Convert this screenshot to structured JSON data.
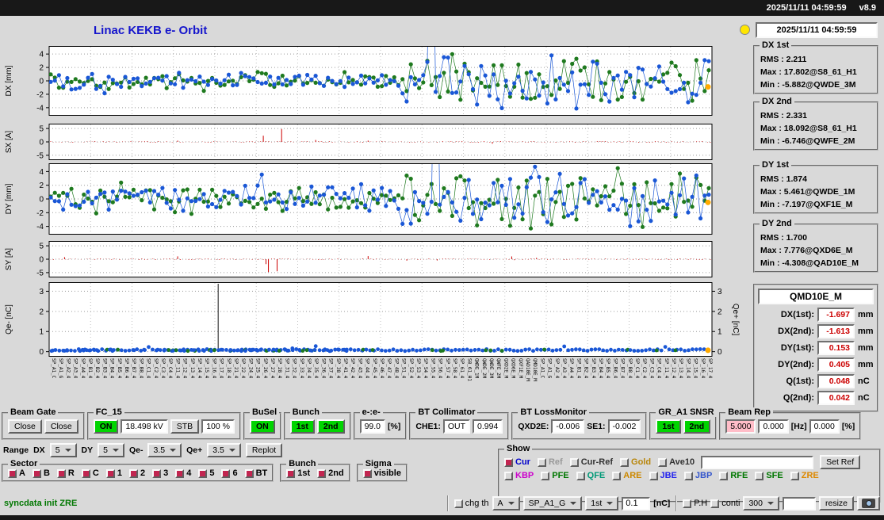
{
  "topbar": {
    "datetime": "2025/11/11 04:59:59",
    "version": "v8.9"
  },
  "header": {
    "title": "Linac KEKB e- Orbit",
    "timestamp": "2025/11/11 04:59:59"
  },
  "colors": {
    "green_on": "#00d400",
    "pink": "#ffbdc8",
    "value_red": "#cc0000",
    "title_blue": "#1515cc",
    "check": "#c22550",
    "lamp_yellow": "#ffe600",
    "series_blue": "#1a57d6",
    "series_green": "#1f7a1f",
    "series_red": "#cc0000",
    "marker_orange": "#ffaa00"
  },
  "stats": [
    {
      "label": "DX 1st",
      "lines": [
        "RMS : 2.211",
        "Max : 17.802@S8_61_H1",
        "Min : -5.882@QWDE_3M"
      ]
    },
    {
      "label": "DX 2nd",
      "lines": [
        "RMS : 2.331",
        "Max : 18.092@S8_61_H1",
        "Min : -6.746@QWFE_2M"
      ]
    },
    {
      "label": "DY 1st",
      "lines": [
        "RMS : 1.874",
        "Max : 5.461@QWDE_1M",
        "Min : -7.197@QXF1E_M"
      ]
    },
    {
      "label": "DY 2nd",
      "lines": [
        "RMS : 1.700",
        "Max : 7.776@QXD6E_M",
        "Min : -4.308@QAD10E_M"
      ]
    }
  ],
  "monitor": {
    "title": "QMD10E_M",
    "rows": [
      {
        "label": "DX(1st):",
        "value": "-1.697",
        "unit": "mm"
      },
      {
        "label": "DX(2nd):",
        "value": "-1.613",
        "unit": "mm"
      },
      {
        "label": "DY(1st):",
        "value": "0.153",
        "unit": "mm"
      },
      {
        "label": "DY(2nd):",
        "value": "0.405",
        "unit": "mm"
      },
      {
        "label": "Q(1st):",
        "value": "0.048",
        "unit": "nC"
      },
      {
        "label": "Q(2nd):",
        "value": "0.042",
        "unit": "nC"
      }
    ]
  },
  "controls": {
    "beam_gate": {
      "title": "Beam Gate",
      "b1": "Close",
      "b2": "Close"
    },
    "fc15": {
      "title": "FC_15",
      "on": "ON",
      "kv": "18.498 kV",
      "stb": "STB",
      "pct": "100 %"
    },
    "busel": {
      "title": "BuSel",
      "on": "ON"
    },
    "bunch": {
      "title": "Bunch",
      "b1": "1st",
      "b2": "2nd"
    },
    "ee": {
      "title": "e-:e-",
      "value": "99.0",
      "unit": "[%]"
    },
    "bt_coll": {
      "title": "BT Collimator",
      "label": "CHE1:",
      "state": "OUT",
      "value": "0.994"
    },
    "bt_loss": {
      "title": "BT LossMonitor",
      "l1": "QXD2E:",
      "v1": "-0.006",
      "l2": "SE1:",
      "v2": "-0.002"
    },
    "gr_snsr": {
      "title": "GR_A1 SNSR",
      "b1": "1st",
      "b2": "2nd"
    },
    "beam_rep": {
      "title": "Beam Rep",
      "v1": "5.000",
      "v2": "0.000",
      "u1": "[Hz]",
      "v3": "0.000",
      "u2": "[%]"
    }
  },
  "range": {
    "label": "Range",
    "dx_label": "DX",
    "dx": "5",
    "dy_label": "DY",
    "dy": "5",
    "qm_label": "Qe-",
    "qm": "3.5",
    "qp_label": "Qe+",
    "qp": "3.5",
    "replot": "Replot"
  },
  "sector": {
    "title": "Sector",
    "items": [
      {
        "label": "A",
        "checked": true
      },
      {
        "label": "B",
        "checked": true
      },
      {
        "label": "R",
        "checked": true
      },
      {
        "label": "C",
        "checked": true
      },
      {
        "label": "1",
        "checked": true
      },
      {
        "label": "2",
        "checked": true
      },
      {
        "label": "3",
        "checked": true
      },
      {
        "label": "4",
        "checked": true
      },
      {
        "label": "5",
        "checked": true
      },
      {
        "label": "6",
        "checked": true
      },
      {
        "label": "BT",
        "checked": true
      }
    ]
  },
  "bunch_sel": {
    "title": "Bunch",
    "items": [
      {
        "label": "1st",
        "checked": true
      },
      {
        "label": "2nd",
        "checked": true
      }
    ]
  },
  "sigma": {
    "title": "Sigma",
    "items": [
      {
        "label": "visible",
        "checked": true
      }
    ]
  },
  "show": {
    "title": "Show",
    "row1": [
      {
        "label": "Cur",
        "checked": true,
        "color": "#0000cc"
      },
      {
        "label": "Ref",
        "checked": false,
        "color": "#999999"
      },
      {
        "label": "Cur-Ref",
        "checked": false,
        "color": "#333333"
      },
      {
        "label": "Gold",
        "checked": false,
        "color": "#b8860b"
      },
      {
        "label": "Ave10",
        "checked": false,
        "color": "#333333"
      }
    ],
    "ref_input": "",
    "set_ref": "Set Ref",
    "row2": [
      {
        "label": "KBP",
        "checked": false,
        "color": "#cc00cc"
      },
      {
        "label": "PFE",
        "checked": false,
        "color": "#007700"
      },
      {
        "label": "QFE",
        "checked": false,
        "color": "#009977"
      },
      {
        "label": "ARE",
        "checked": false,
        "color": "#cc8800"
      },
      {
        "label": "JBE",
        "checked": false,
        "color": "#2222ee"
      },
      {
        "label": "JBP",
        "checked": false,
        "color": "#3355cc"
      },
      {
        "label": "RFE",
        "checked": false,
        "color": "#007700"
      },
      {
        "label": "SFE",
        "checked": false,
        "color": "#007700"
      },
      {
        "label": "ZRE",
        "checked": false,
        "color": "#dd8800"
      }
    ]
  },
  "statusbar": {
    "message": "syncdata init ZRE",
    "chg_th": "chg th",
    "sel_a": "A",
    "sel_sp": "SP_A1_G",
    "sel_bunch": "1st",
    "threshold": "0.1",
    "threshold_unit": "[nC]",
    "ph": "P.H",
    "conti": "conti",
    "sel_num": "300",
    "free_input": "",
    "resize": "resize"
  },
  "chart_data": [
    {
      "id": "dx",
      "type": "scatter-line",
      "ylabel": "DX [mm]",
      "yticks": [
        4,
        2,
        0,
        -2,
        -4
      ],
      "ylim": [
        -5.2,
        5.2
      ],
      "split": 0.53,
      "left_amp": 1.1,
      "right_amp": 3.2,
      "spike_x": 0.58,
      "marker_y": -0.9,
      "colors": [
        "#1a57d6",
        "#1f7a1f"
      ],
      "rms": 2.211
    },
    {
      "id": "sx",
      "type": "bars",
      "ylabel": "SX [A]",
      "yticks": [
        5,
        0,
        -5
      ],
      "ylim": [
        -6.8,
        6.8
      ],
      "cluster": [
        0.32,
        0.38
      ],
      "peak": 4.8,
      "color": "#cc0000"
    },
    {
      "id": "dy",
      "type": "scatter-line",
      "ylabel": "DY [mm]",
      "yticks": [
        4,
        2,
        0,
        -2,
        -4
      ],
      "ylim": [
        -5.2,
        5.2
      ],
      "split": 0.5,
      "left_amp": 1.6,
      "right_amp": 3.4,
      "spike_x": 0.585,
      "marker_y": -0.5,
      "colors": [
        "#1a57d6",
        "#1f7a1f"
      ],
      "rms": 1.874
    },
    {
      "id": "sy",
      "type": "bars",
      "ylabel": "SY [A]",
      "yticks": [
        5,
        0,
        -5
      ],
      "ylim": [
        -6.8,
        6.8
      ],
      "cluster": [
        0.3,
        0.36
      ],
      "peak": -4.8,
      "color": "#cc0000"
    },
    {
      "id": "q",
      "type": "scatter",
      "ylabel": "Qe- [nC]",
      "ylabel_right": "Qe+ [nC]",
      "yticks": [
        3,
        2,
        1,
        0
      ],
      "ylim": [
        -0.25,
        3.45
      ],
      "base": 0.07,
      "spike_x": 0.255,
      "marker_y": 0.07,
      "colors": [
        "#1a57d6",
        "#1f7a1f"
      ]
    }
  ],
  "xlabels": [
    "SP_A1_C",
    "SP_A1_G",
    "SP_A2_4",
    "SP_A3_4",
    "SP_A4_4",
    "SP_B1_4",
    "SP_B2_4",
    "SP_B3_4",
    "SP_B4_4",
    "SP_B5_4",
    "SP_B6_4",
    "SP_B7_4",
    "SP_B8_4",
    "SP_C1_4",
    "SP_C2_4",
    "SP_C3_4",
    "SP_C4_4",
    "SP_11_4",
    "SP_12_4",
    "SP_13_4",
    "SP_14_4",
    "SP_15_4",
    "SP_16_4",
    "SP_17_4",
    "SP_18_4",
    "SP_21_4",
    "SP_22_4",
    "SP_24_4",
    "SP_25_4",
    "SP_26_4",
    "SP_27_4",
    "SP_28_4",
    "SP_31_4",
    "SP_32_4",
    "SP_33_4",
    "SP_34_4",
    "SP_35_4",
    "SP_36_4",
    "SP_37_4",
    "SP_38_4",
    "SP_41_4",
    "SP_42_4",
    "SP_43_4",
    "SP_44_4",
    "SP_45_4",
    "SP_46_4",
    "SP_47_4",
    "SP_48_4",
    "SP_51_4",
    "SP_52_4",
    "SP_53_4",
    "SP_54_4",
    "SP_55_4",
    "SP_56_4",
    "SP_57_4",
    "SP_58_4",
    "SP_61_4",
    "S8_61_H1",
    "QWDE_1M",
    "QWDE_2M",
    "QWDE_3M",
    "QWFE_2M",
    "QXD2E_M",
    "QXD6E_M",
    "QXF1E_M",
    "QAD10E_M",
    "QMD10E_M"
  ]
}
